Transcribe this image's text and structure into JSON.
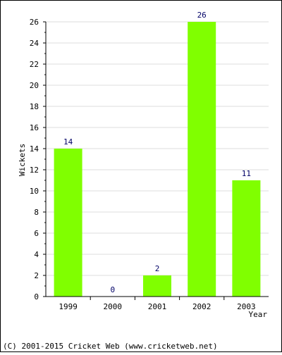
{
  "chart_data": {
    "type": "bar",
    "categories": [
      "1999",
      "2000",
      "2001",
      "2002",
      "2003"
    ],
    "values": [
      14,
      0,
      2,
      26,
      11
    ],
    "data_labels": [
      "14",
      "0",
      "2",
      "26",
      "11"
    ],
    "title": "",
    "xlabel": "Year",
    "ylabel": "Wickets",
    "ylim": [
      0,
      26
    ],
    "yticks": [
      0,
      2,
      4,
      6,
      8,
      10,
      12,
      14,
      16,
      18,
      20,
      22,
      24,
      26
    ],
    "grid": true,
    "bar_color": "#80ff00"
  },
  "footer": {
    "text": "(C) 2001-2015 Cricket Web (www.cricketweb.net)"
  }
}
